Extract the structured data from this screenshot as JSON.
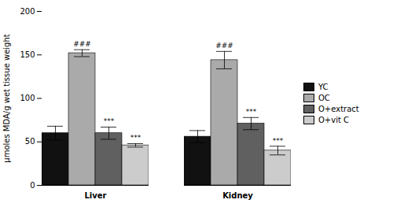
{
  "chart_data": {
    "type": "bar",
    "categories": [
      "Liver",
      "Kidney"
    ],
    "series": [
      {
        "name": "YC",
        "color": "#111111",
        "values": [
          60,
          56
        ],
        "errors": [
          8,
          7
        ]
      },
      {
        "name": "OC",
        "color": "#aaaaaa",
        "values": [
          152,
          144
        ],
        "errors": [
          4,
          10
        ],
        "annotations": [
          "###",
          "###"
        ]
      },
      {
        "name": "O+extract",
        "color": "#606060",
        "values": [
          60,
          71
        ],
        "errors": [
          7,
          7
        ],
        "annotations": [
          "***",
          "***"
        ]
      },
      {
        "name": "O+vit C",
        "color": "#cccccc",
        "values": [
          46,
          40
        ],
        "errors": [
          2,
          5
        ],
        "annotations": [
          "***",
          "***"
        ]
      }
    ],
    "ylabel": "µmoles MDA/g wet tissue weight",
    "ylim": [
      0,
      200
    ],
    "yticks": [
      0,
      50,
      100,
      150,
      200
    ],
    "grid": false,
    "legend": "right"
  }
}
